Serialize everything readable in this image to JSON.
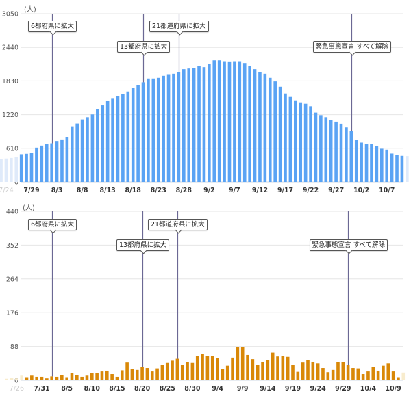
{
  "chart_data": [
    {
      "type": "bar",
      "ylabel": "(人)",
      "ylim": [
        0,
        3050
      ],
      "yticks": [
        0,
        610,
        1220,
        1830,
        2440,
        3050
      ],
      "grid": true,
      "bar_color": "#5aa3f4",
      "faded_bar_color": "#dfeafa",
      "xtick_labels": [
        "7/24",
        "7/29",
        "8/3",
        "8/8",
        "8/13",
        "8/18",
        "8/23",
        "8/28",
        "9/2",
        "9/7",
        "9/12",
        "9/17",
        "9/22",
        "9/27",
        "10/2",
        "10/7"
      ],
      "faded_xtick_labels": [
        "7/24"
      ],
      "dates": [
        "7/27",
        "7/28",
        "7/29",
        "7/30",
        "7/31",
        "8/1",
        "8/2",
        "8/3",
        "8/4",
        "8/5",
        "8/6",
        "8/7",
        "8/8",
        "8/9",
        "8/10",
        "8/11",
        "8/12",
        "8/13",
        "8/14",
        "8/15",
        "8/16",
        "8/17",
        "8/18",
        "8/19",
        "8/20",
        "8/21",
        "8/22",
        "8/23",
        "8/24",
        "8/25",
        "8/26",
        "8/27",
        "8/28",
        "8/29",
        "8/30",
        "8/31",
        "9/1",
        "9/2",
        "9/3",
        "9/4",
        "9/5",
        "9/6",
        "9/7",
        "9/8",
        "9/9",
        "9/10",
        "9/11",
        "9/12",
        "9/13",
        "9/14",
        "9/15",
        "9/16",
        "9/17",
        "9/18",
        "9/19",
        "9/20",
        "9/21",
        "9/22",
        "9/23",
        "9/24",
        "9/25",
        "9/26",
        "9/27",
        "9/28",
        "9/29",
        "9/30",
        "10/1",
        "10/2",
        "10/3",
        "10/4",
        "10/5",
        "10/6",
        "10/7",
        "10/8",
        "10/9",
        "10/10"
      ],
      "values": [
        503,
        511,
        531,
        622,
        659,
        688,
        700,
        742,
        770,
        816,
        1009,
        1059,
        1133,
        1174,
        1224,
        1322,
        1388,
        1463,
        1508,
        1553,
        1594,
        1640,
        1702,
        1751,
        1805,
        1875,
        1875,
        1887,
        1924,
        1953,
        1961,
        1986,
        2044,
        2056,
        2064,
        2097,
        2081,
        2142,
        2204,
        2204,
        2188,
        2184,
        2188,
        2188,
        2155,
        2105,
        2044,
        1994,
        1961,
        1887,
        1821,
        1726,
        1603,
        1541,
        1479,
        1442,
        1417,
        1372,
        1257,
        1211,
        1174,
        1121,
        1092,
        1055,
        989,
        919,
        766,
        713,
        688,
        684,
        647,
        602,
        585,
        515,
        490,
        474
      ],
      "faded_dates": [
        "7/23",
        "7/24",
        "7/25",
        "7/26",
        "10/11"
      ],
      "faded_values": [
        420,
        425,
        435,
        450,
        470
      ],
      "annotations": [
        {
          "date": "8/2",
          "label": "6都府県に拡大"
        },
        {
          "date": "8/20",
          "label": "13都府県に拡大"
        },
        {
          "date": "8/27",
          "label": "21都道府県に拡大"
        },
        {
          "date": "9/30",
          "label": "緊急事態宣言 すべて解除"
        }
      ],
      "annotation_line_color": "#6b6894"
    },
    {
      "type": "bar",
      "ylabel": "(人)",
      "ylim": [
        0,
        440
      ],
      "yticks": [
        0,
        88,
        176,
        264,
        352,
        440
      ],
      "grid": true,
      "bar_color": "#d98807",
      "faded_bar_color": "#f8eccd",
      "xtick_labels": [
        "7/26",
        "7/31",
        "8/5",
        "8/10",
        "8/15",
        "8/20",
        "8/25",
        "8/30",
        "9/4",
        "9/9",
        "9/14",
        "9/19",
        "9/24",
        "9/29",
        "10/4",
        "10/9"
      ],
      "faded_xtick_labels": [
        "7/26"
      ],
      "dates": [
        "7/28",
        "7/29",
        "7/30",
        "7/31",
        "8/1",
        "8/2",
        "8/3",
        "8/4",
        "8/5",
        "8/6",
        "8/7",
        "8/8",
        "8/9",
        "8/10",
        "8/11",
        "8/12",
        "8/13",
        "8/14",
        "8/15",
        "8/16",
        "8/17",
        "8/18",
        "8/19",
        "8/20",
        "8/21",
        "8/22",
        "8/23",
        "8/24",
        "8/25",
        "8/26",
        "8/27",
        "8/28",
        "8/29",
        "8/30",
        "8/31",
        "9/1",
        "9/2",
        "9/3",
        "9/4",
        "9/5",
        "9/6",
        "9/7",
        "9/8",
        "9/9",
        "9/10",
        "9/11",
        "9/12",
        "9/13",
        "9/14",
        "9/15",
        "9/16",
        "9/17",
        "9/18",
        "9/19",
        "9/20",
        "9/21",
        "9/22",
        "9/23",
        "9/24",
        "9/25",
        "9/26",
        "9/27",
        "9/28",
        "9/29",
        "9/30",
        "10/1",
        "10/2",
        "10/3",
        "10/4",
        "10/5",
        "10/6",
        "10/7",
        "10/8",
        "10/9",
        "10/10"
      ],
      "values": [
        8,
        12,
        9,
        9,
        5,
        10,
        9,
        13,
        8,
        19,
        13,
        9,
        12,
        18,
        19,
        23,
        25,
        16,
        9,
        26,
        46,
        29,
        27,
        35,
        32,
        23,
        31,
        40,
        45,
        51,
        56,
        40,
        48,
        45,
        63,
        69,
        63,
        63,
        58,
        30,
        38,
        59,
        87,
        86,
        66,
        55,
        40,
        48,
        53,
        72,
        62,
        63,
        61,
        40,
        22,
        46,
        52,
        48,
        44,
        32,
        21,
        27,
        48,
        47,
        40,
        32,
        31,
        16,
        23,
        35,
        25,
        38,
        44,
        23,
        8
      ],
      "faded_dates": [
        "7/24",
        "7/25",
        "7/26",
        "7/27",
        "10/11"
      ],
      "faded_values": [
        4,
        6,
        5,
        12,
        20
      ],
      "annotations": [
        {
          "date": "8/2",
          "label": "6都府県に拡大"
        },
        {
          "date": "8/20",
          "label": "13都府県に拡大"
        },
        {
          "date": "8/27",
          "label": "21都道府県に拡大"
        },
        {
          "date": "9/30",
          "label": "緊急事態宣言 すべて解除"
        }
      ],
      "annotation_line_color": "#6b6894"
    }
  ]
}
